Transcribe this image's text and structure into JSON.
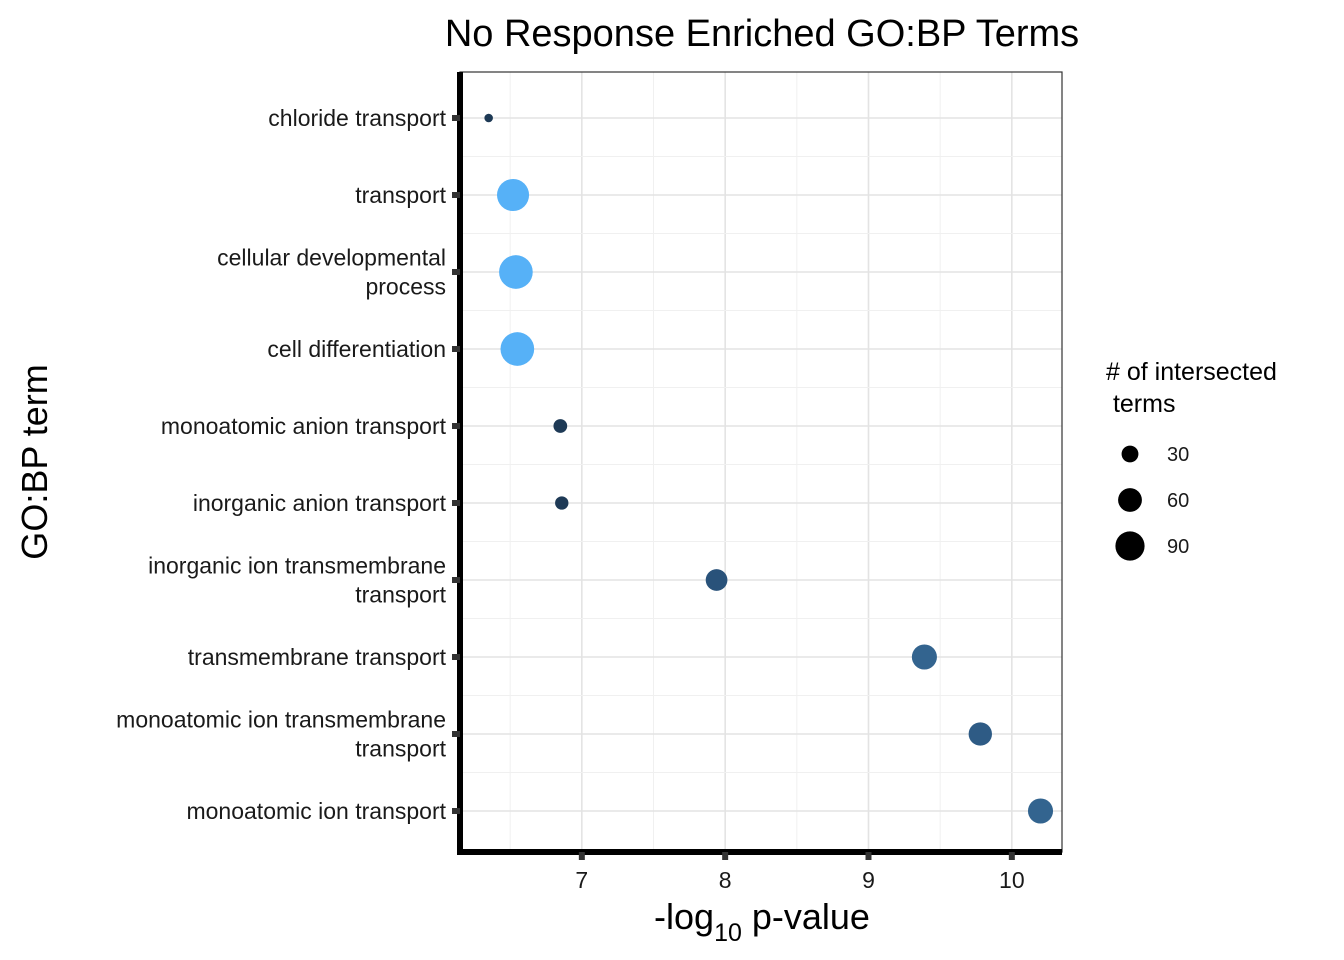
{
  "chart_data": {
    "type": "scatter",
    "title": "No Response Enriched GO:BP Terms",
    "xlabel_prefix": "-log",
    "xlabel_sub": "10",
    "xlabel_suffix": " p-value",
    "ylabel": "GO:BP term",
    "xlim": [
      6.15,
      10.35
    ],
    "xticks": [
      7,
      8,
      9,
      10
    ],
    "grid": true,
    "legend": {
      "title_lines": [
        "# of intersected",
        " terms"
      ],
      "sizes": [
        30,
        60,
        90
      ],
      "position": "right"
    },
    "colors": {
      "light": "#56B1F7",
      "dark": "#132B43"
    },
    "points": [
      {
        "term": [
          "chloride transport"
        ],
        "x": 6.35,
        "size": 7,
        "color": "#1d3955"
      },
      {
        "term": [
          "transport"
        ],
        "x": 6.52,
        "size": 98,
        "color": "#56B1F7"
      },
      {
        "term": [
          "cellular developmental",
          "process"
        ],
        "x": 6.54,
        "size": 108,
        "color": "#56B1F7"
      },
      {
        "term": [
          "cell differentiation"
        ],
        "x": 6.55,
        "size": 108,
        "color": "#56B1F7"
      },
      {
        "term": [
          "monoatomic anion transport"
        ],
        "x": 6.85,
        "size": 18,
        "color": "#1e3a56"
      },
      {
        "term": [
          "inorganic anion transport"
        ],
        "x": 6.86,
        "size": 17,
        "color": "#1e3a56"
      },
      {
        "term": [
          "inorganic ion transmembrane",
          "transport"
        ],
        "x": 7.94,
        "size": 45,
        "color": "#29527a"
      },
      {
        "term": [
          "transmembrane transport"
        ],
        "x": 9.39,
        "size": 60,
        "color": "#33648f"
      },
      {
        "term": [
          "monoatomic ion transmembrane",
          "transport"
        ],
        "x": 9.78,
        "size": 52,
        "color": "#2e5b85"
      },
      {
        "term": [
          "monoatomic ion transport"
        ],
        "x": 10.2,
        "size": 60,
        "color": "#33648f"
      }
    ]
  }
}
